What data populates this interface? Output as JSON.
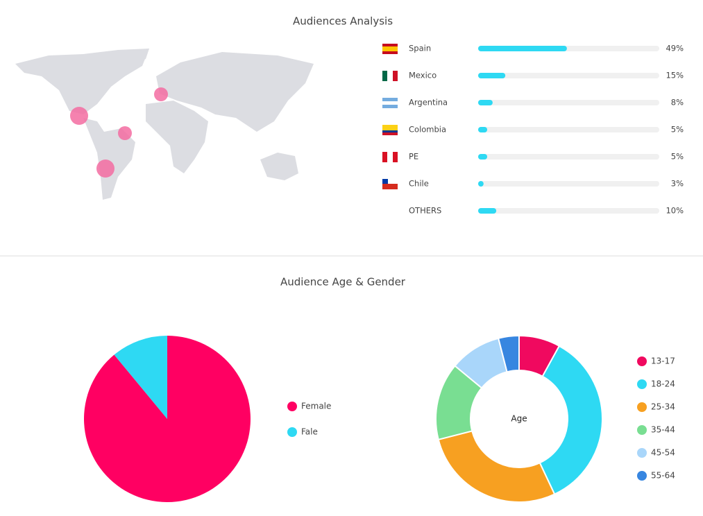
{
  "chart_data": [
    {
      "type": "hbar",
      "title": "Audiences Analysis",
      "categories": [
        "Spain",
        "Mexico",
        "Argentina",
        "Colombia",
        "PE",
        "Chile",
        "OTHERS"
      ],
      "values": [
        49,
        15,
        8,
        5,
        5,
        3,
        10
      ],
      "value_labels": [
        "49%",
        "15%",
        "8%",
        "5%",
        "5%",
        "3%",
        "10%"
      ],
      "xlim": [
        0,
        100
      ],
      "color": "#2ed9f3"
    },
    {
      "type": "pie",
      "title": "Audience Age & Gender",
      "categories": [
        "Female",
        "Fale"
      ],
      "values": [
        89,
        11
      ],
      "colors": [
        "#ff0062",
        "#2ed9f3"
      ]
    },
    {
      "type": "donut",
      "center_label": "Age",
      "categories": [
        "13-17",
        "18-24",
        "25-34",
        "35-44",
        "45-54",
        "55-64"
      ],
      "values": [
        8,
        35,
        28,
        15,
        10,
        4
      ],
      "colors": [
        "#f0095f",
        "#2ed9f3",
        "#f7a021",
        "#79de92",
        "#a9d6fa",
        "#3786e0"
      ]
    }
  ]
}
